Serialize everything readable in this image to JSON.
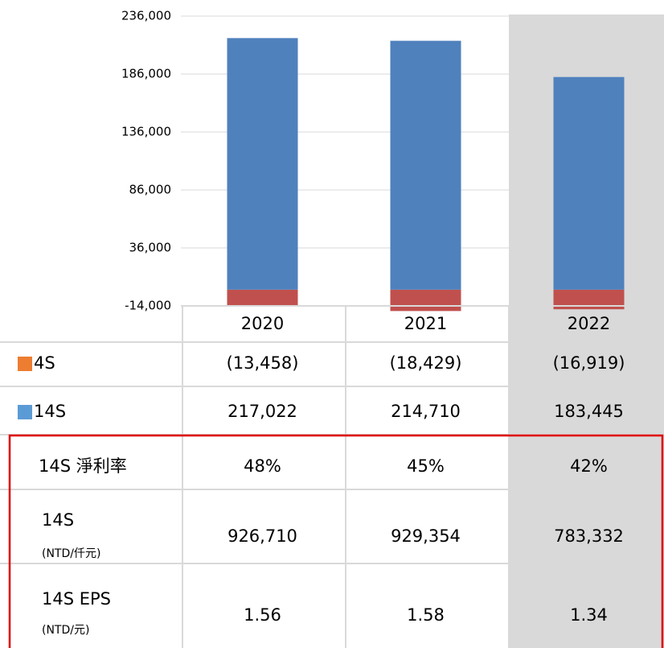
{
  "chart_data": {
    "type": "bar",
    "categories": [
      "2020",
      "2021",
      "2022"
    ],
    "series": [
      {
        "name": "4S",
        "color": "#C0504D",
        "legend_color": "#ED7D31",
        "values": [
          -13458,
          -18429,
          -16919
        ],
        "value_labels": [
          "(13,458)",
          "(18,429)",
          "(16,919)"
        ]
      },
      {
        "name": "14S",
        "color": "#4F81BD",
        "legend_color": "#5B9BD5",
        "values": [
          217022,
          214710,
          183445
        ],
        "value_labels": [
          "217,022",
          "214,710",
          "183,445"
        ]
      }
    ],
    "ylim": [
      -14000,
      236000
    ],
    "yticks": [
      {
        "value": -14000,
        "label": "-14,000"
      },
      {
        "value": 36000,
        "label": "36,000"
      },
      {
        "value": 86000,
        "label": "86,000"
      },
      {
        "value": 136000,
        "label": "136,000"
      },
      {
        "value": 186000,
        "label": "186,000"
      },
      {
        "value": 236000,
        "label": "236,000"
      }
    ],
    "grid": true
  },
  "table": {
    "rows": [
      {
        "label": "14S 淨利率",
        "cells": [
          "48%",
          "45%",
          "42%"
        ]
      },
      {
        "label": "14S",
        "unit": "(NTD/仟元)",
        "cells": [
          "926,710",
          "929,354",
          "783,332"
        ]
      },
      {
        "label": "14S EPS",
        "unit": "(NTD/元)",
        "cells": [
          "1.56",
          "1.58",
          "1.34"
        ]
      }
    ]
  }
}
